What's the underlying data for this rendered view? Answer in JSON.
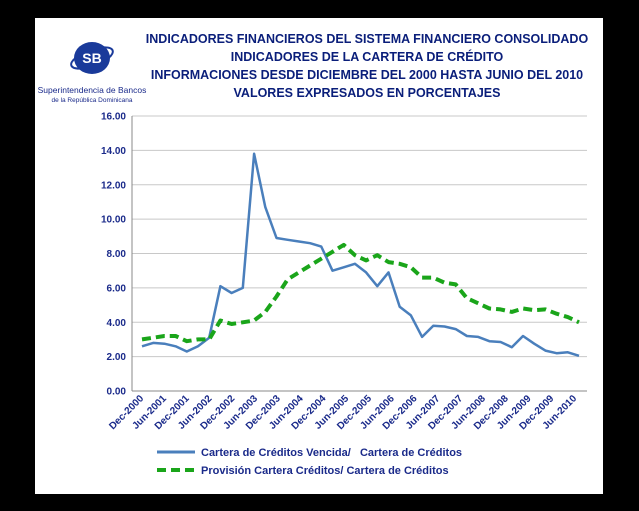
{
  "title_lines": [
    "INDICADORES FINANCIEROS  DEL SISTEMA FINANCIERO CONSOLIDADO",
    "INDICADORES DE LA CARTERA DE CRÉDITO",
    "INFORMACIONES DESDE DICIEMBRE DEL 2000  HASTA JUNIO DEL 2010",
    "VALORES EXPRESADOS EN PORCENTAJES"
  ],
  "logo": {
    "monogram": "SB",
    "name": "Superintendencia de Bancos",
    "subname": "de la República Dominicana"
  },
  "colors": {
    "series_1": "#4a7fbc",
    "series_2": "#1aa51a",
    "axis_text": "#1a2a8a",
    "title": "#0a1e7a"
  },
  "chart_data": {
    "type": "line",
    "ylim": [
      0,
      16
    ],
    "y_ticks": [
      "0.00",
      "2.00",
      "4.00",
      "6.00",
      "8.00",
      "10.00",
      "12.00",
      "14.00",
      "16.00"
    ],
    "grid": "horizontal",
    "legend_position": "bottom",
    "x_ticks": [
      "Dec-2000",
      "Jun-2001",
      "Dec-2001",
      "Jun-2002",
      "Dec-2002",
      "Jun-2003",
      "Dec-2003",
      "Jun-2004",
      "Dec-2004",
      "Jun-2005",
      "Dec-2005",
      "Jun-2006",
      "Dec-2006",
      "Jun-2007",
      "Dec-2007",
      "Jun-2008",
      "Dec-2008",
      "Jun-2009",
      "Dec-2009",
      "Jun-2010"
    ],
    "series": [
      {
        "name": "Cartera de Créditos Vencida/   Cartera de Créditos",
        "style": "solid",
        "values": [
          2.6,
          2.8,
          2.75,
          2.6,
          2.3,
          2.6,
          3.1,
          6.1,
          5.7,
          6.0,
          13.8,
          10.7,
          8.9,
          8.8,
          8.7,
          8.6,
          8.4,
          7.0,
          7.2,
          7.4,
          6.9,
          6.1,
          6.9,
          4.9,
          4.4,
          3.15,
          3.8,
          3.75,
          3.6,
          3.2,
          3.15,
          2.9,
          2.85,
          2.55,
          3.2,
          2.75,
          2.35,
          2.2,
          2.25,
          2.05
        ]
      },
      {
        "name": "Provisión Cartera Créditos/ Cartera de Créditos",
        "style": "dashed",
        "values": [
          3.0,
          3.1,
          3.2,
          3.2,
          2.9,
          3.0,
          3.0,
          4.1,
          3.9,
          4.0,
          4.1,
          4.6,
          5.5,
          6.5,
          6.9,
          7.3,
          7.7,
          8.1,
          8.5,
          7.9,
          7.6,
          7.9,
          7.5,
          7.4,
          7.2,
          6.6,
          6.6,
          6.3,
          6.2,
          5.4,
          5.1,
          4.8,
          4.75,
          4.6,
          4.8,
          4.7,
          4.75,
          4.5,
          4.3,
          4.0
        ]
      }
    ]
  }
}
